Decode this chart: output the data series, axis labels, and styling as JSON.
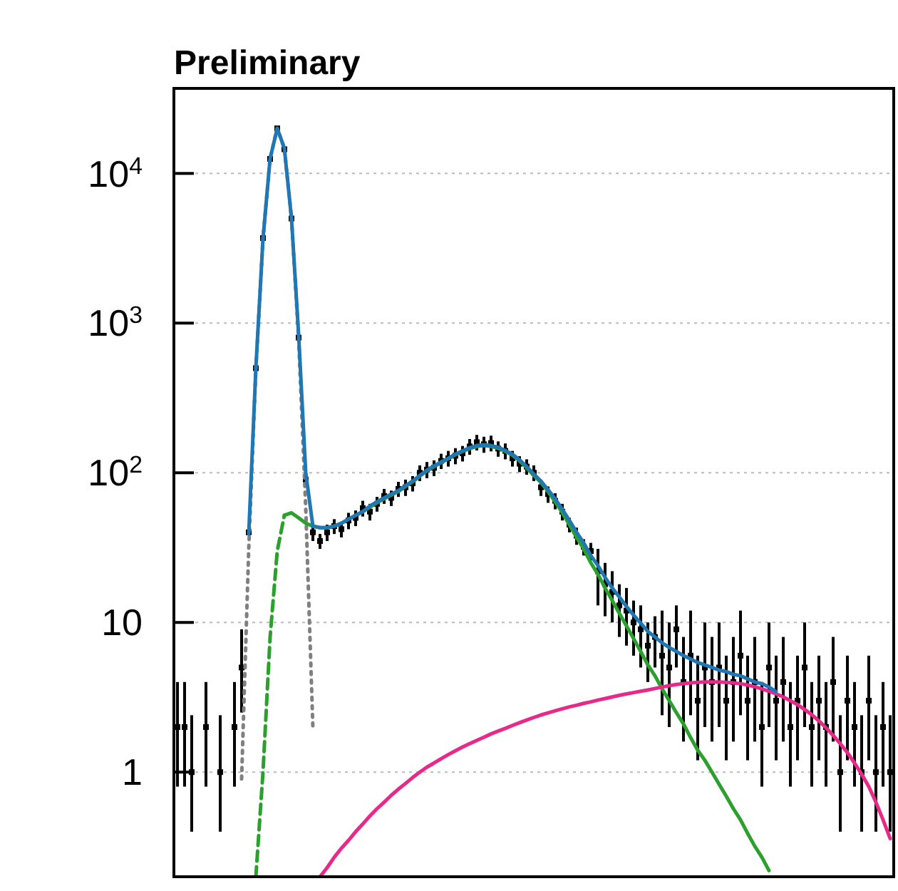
{
  "chart_data": {
    "type": "line",
    "title": "Preliminary",
    "categories": [
      null,
      null,
      null,
      null,
      null,
      null,
      null,
      null,
      null,
      null,
      null,
      null,
      null,
      null,
      null,
      null,
      null,
      null,
      null,
      null,
      null,
      null,
      null,
      null,
      null,
      null,
      null,
      null,
      null,
      null,
      null,
      null,
      null,
      null,
      null,
      null,
      null,
      null,
      null,
      null,
      null,
      null,
      null,
      null,
      null,
      null,
      null,
      null,
      null,
      null,
      null,
      null,
      null,
      null,
      null,
      null,
      null,
      null,
      null,
      null,
      null,
      null,
      null,
      null,
      null,
      null,
      null,
      null,
      null,
      null,
      null,
      null,
      null,
      null,
      null,
      null,
      null,
      null,
      null,
      null,
      null,
      null,
      null,
      null,
      null,
      null,
      null,
      null,
      null,
      null,
      null,
      null,
      null,
      null,
      null,
      null,
      null,
      null,
      null,
      null,
      null
    ],
    "log": "y",
    "ylim": [
      0.2,
      37000
    ],
    "yticks": [
      1,
      10,
      {
        "value": 100,
        "label": "10$^{2}$"
      },
      {
        "value": 1000,
        "label": "10$^{3}$"
      },
      {
        "value": 10000,
        "label": "10$^{4}$"
      }
    ],
    "tick_labels": "y",
    "grid": "y",
    "marker": "none",
    "series": [
      {
        "type": "scatter",
        "marker": "square",
        "color": "#000000",
        "values": [
          2,
          2,
          1,
          null,
          2,
          null,
          1,
          null,
          2,
          5,
          40,
          500,
          3700,
          12500,
          20000,
          14500,
          5000,
          800,
          90,
          40,
          35,
          40,
          44,
          42,
          48,
          50,
          58,
          55,
          62,
          70,
          68,
          78,
          80,
          85,
          100,
          105,
          108,
          120,
          125,
          130,
          135,
          150,
          160,
          155,
          158,
          145,
          140,
          125,
          115,
          110,
          100,
          80,
          72,
          65,
          55,
          45,
          38,
          32,
          30,
          22,
          18,
          16,
          13,
          12,
          10,
          9,
          7,
          8,
          6,
          5,
          9,
          4,
          6,
          3,
          5,
          4,
          5,
          3,
          4,
          6,
          3,
          4,
          2,
          5,
          3,
          4,
          2,
          3,
          5,
          2,
          3,
          2,
          4,
          1,
          3,
          2,
          1,
          3,
          1,
          2,
          1
        ],
        "errors": [
          [
            0.8,
            4
          ],
          [
            0.8,
            4
          ],
          [
            0.4,
            2.4
          ],
          null,
          [
            0.8,
            4
          ],
          null,
          [
            0.4,
            2.4
          ],
          null,
          [
            0.8,
            4
          ],
          [
            2.5,
            9
          ],
          null,
          null,
          null,
          null,
          null,
          null,
          null,
          null,
          null,
          5,
          4,
          5,
          5,
          5,
          6,
          6,
          7,
          7,
          7,
          8,
          8,
          9,
          10,
          10,
          12,
          13,
          13,
          14,
          15,
          16,
          16,
          18,
          19,
          19,
          19,
          17,
          17,
          15,
          14,
          13,
          12,
          10,
          9,
          8,
          7,
          5,
          5,
          4,
          4,
          9,
          7,
          6,
          5,
          5,
          4,
          4,
          3,
          3,
          [
            2.4,
            12
          ],
          [
            2,
            10
          ],
          4,
          [
            1.6,
            8
          ],
          [
            2.4,
            12
          ],
          [
            1.2,
            6
          ],
          [
            2,
            10
          ],
          [
            1.6,
            8
          ],
          [
            2,
            10
          ],
          [
            1.2,
            6
          ],
          [
            1.6,
            8
          ],
          [
            2.4,
            12
          ],
          [
            1.2,
            6
          ],
          [
            1.6,
            8
          ],
          [
            0.8,
            4
          ],
          [
            2,
            10
          ],
          [
            1.2,
            6
          ],
          [
            1.6,
            8
          ],
          [
            0.8,
            4
          ],
          [
            1.2,
            6
          ],
          [
            2,
            10
          ],
          [
            0.8,
            4
          ],
          [
            1.2,
            6
          ],
          [
            0.8,
            4
          ],
          [
            1.6,
            8
          ],
          [
            0.4,
            2.4
          ],
          [
            1.2,
            6
          ],
          [
            0.8,
            4
          ],
          [
            0.4,
            2.4
          ],
          [
            1.2,
            6
          ],
          [
            0.4,
            2.4
          ],
          [
            0.8,
            4
          ],
          [
            0.4,
            2.4
          ]
        ]
      },
      {
        "color": "#808080",
        "line_style": "dotted",
        "values": [
          null,
          null,
          null,
          null,
          null,
          null,
          null,
          null,
          null,
          0.9,
          31,
          494,
          3650,
          12600,
          20000,
          14700,
          5000,
          790,
          58,
          2.0,
          null,
          null,
          null,
          null,
          null,
          null,
          null,
          null,
          null,
          null,
          null,
          null,
          null,
          null,
          null,
          null,
          null,
          null,
          null,
          null,
          null,
          null,
          null,
          null,
          null,
          null,
          null,
          null,
          null,
          null,
          null,
          null,
          null,
          null,
          null,
          null,
          null,
          null,
          null,
          null,
          null,
          null,
          null,
          null,
          null,
          null,
          null,
          null,
          null,
          null,
          null,
          null,
          null,
          null,
          null,
          null,
          null,
          null,
          null,
          null,
          null,
          null,
          null,
          null,
          null,
          null,
          null,
          null,
          null,
          null,
          null,
          null,
          null,
          null,
          null,
          null,
          null,
          null,
          null,
          null,
          null
        ]
      },
      {
        "color": "#2ca02c",
        "line_style": "dashed",
        "values": [
          null,
          null,
          null,
          null,
          null,
          null,
          null,
          null,
          null,
          null,
          null,
          0.2,
          1.0,
          8,
          30,
          52,
          null,
          null,
          null,
          null,
          null,
          null,
          null,
          null,
          null,
          null,
          null,
          null,
          null,
          null,
          null,
          null,
          null,
          null,
          null,
          null,
          null,
          null,
          null,
          null,
          null,
          null,
          null,
          null,
          null,
          null,
          null,
          null,
          null,
          null,
          null,
          null,
          null,
          null,
          null,
          null,
          null,
          null,
          null,
          null,
          null,
          null,
          null,
          null,
          null,
          null,
          null,
          null,
          null,
          null,
          null,
          null,
          null,
          null,
          null,
          null,
          null,
          null,
          null,
          null,
          null,
          null,
          null,
          null,
          null,
          null,
          null,
          null,
          null,
          null,
          null,
          null,
          null,
          null,
          null,
          null,
          null,
          null,
          null,
          null,
          null
        ]
      },
      {
        "color": "#2ca02c",
        "values": [
          null,
          null,
          null,
          null,
          null,
          null,
          null,
          null,
          null,
          null,
          null,
          null,
          null,
          null,
          null,
          52,
          54,
          50,
          46,
          44,
          43,
          43,
          44,
          46,
          49,
          52,
          55,
          59,
          63,
          67,
          71,
          75,
          81,
          87,
          95,
          103,
          110,
          117,
          124,
          132,
          139,
          145,
          150,
          152,
          150,
          146,
          139,
          131,
          120,
          108,
          96,
          86,
          75,
          64,
          54,
          45,
          37,
          31,
          25,
          21,
          17,
          14,
          11.5,
          9.5,
          7.8,
          6.4,
          5.2,
          4.4,
          3.6,
          3.0,
          2.5,
          2.1,
          1.7,
          1.4,
          1.2,
          1.0,
          0.83,
          0.69,
          0.57,
          0.48,
          0.39,
          0.32,
          0.27,
          0.22,
          null,
          null,
          null,
          null,
          null,
          null,
          null,
          null,
          null,
          null,
          null,
          null,
          null,
          null,
          null,
          null,
          null
        ]
      },
      {
        "color": "#e7298a",
        "values": [
          null,
          null,
          null,
          null,
          null,
          null,
          null,
          null,
          null,
          null,
          null,
          null,
          null,
          null,
          null,
          null,
          null,
          null,
          null,
          null,
          0.2,
          0.23,
          0.27,
          0.31,
          0.35,
          0.4,
          0.45,
          0.51,
          0.57,
          0.63,
          0.7,
          0.77,
          0.84,
          0.92,
          1.0,
          1.08,
          1.15,
          1.23,
          1.31,
          1.39,
          1.47,
          1.55,
          1.63,
          1.71,
          1.8,
          1.88,
          1.96,
          2.05,
          2.14,
          2.23,
          2.32,
          2.41,
          2.49,
          2.57,
          2.65,
          2.73,
          2.8,
          2.88,
          2.95,
          3.03,
          3.1,
          3.18,
          3.26,
          3.33,
          3.4,
          3.47,
          3.54,
          3.62,
          3.7,
          3.78,
          3.85,
          3.9,
          3.95,
          3.98,
          4.0,
          4.0,
          4.0,
          3.98,
          3.95,
          3.9,
          3.82,
          3.72,
          3.6,
          3.47,
          3.33,
          3.18,
          3.0,
          2.82,
          2.62,
          2.42,
          2.2,
          1.98,
          1.76,
          1.55,
          1.35,
          1.15,
          0.97,
          0.8,
          0.63,
          0.48,
          0.36
        ]
      },
      {
        "color": "#1f77b4",
        "values": [
          null,
          null,
          null,
          null,
          null,
          null,
          null,
          null,
          null,
          null,
          39,
          500,
          3650,
          12600,
          20000,
          14700,
          5000,
          840,
          100,
          44,
          43,
          43,
          44,
          46,
          49,
          52,
          55,
          60,
          64,
          68,
          72,
          76,
          82,
          88,
          96,
          104,
          111,
          118,
          125,
          133,
          140,
          147,
          152,
          154,
          152,
          148,
          141,
          133,
          122,
          110,
          98,
          88,
          77,
          67,
          57,
          48,
          40,
          34,
          28,
          24,
          20,
          17,
          14.8,
          12.8,
          11.2,
          9.9,
          8.7,
          8.0,
          7.3,
          6.8,
          6.4,
          6.0,
          5.7,
          5.4,
          5.2,
          5.0,
          4.8,
          4.7,
          4.5,
          4.4,
          4.2,
          4.0,
          3.9,
          3.7,
          3.45,
          null,
          null,
          null,
          null,
          null,
          null,
          null,
          null,
          null,
          null,
          null,
          null,
          null,
          null,
          null,
          null
        ]
      }
    ]
  }
}
